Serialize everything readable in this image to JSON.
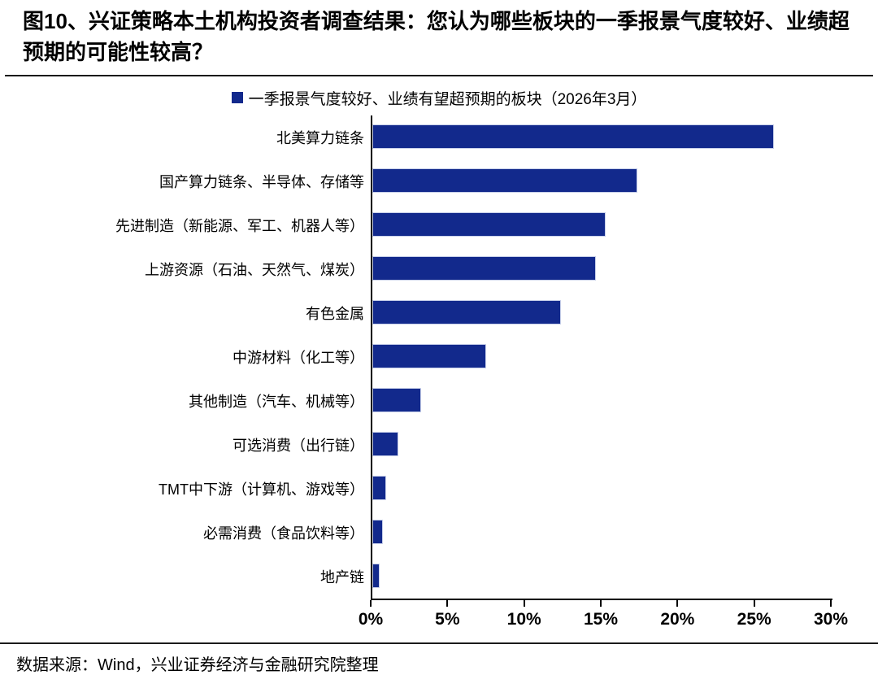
{
  "header": {
    "title": "图10、兴证策略本土机构投资者调查结果：您认为哪些板块的一季报景气度较好、业绩超预期的可能性较高？"
  },
  "legend": {
    "label": "一季报景气度较好、业绩有望超预期的板块（2026年3月）"
  },
  "footer": {
    "source": "数据来源：Wind，兴业证券经济与金融研究院整理"
  },
  "colors": {
    "bar": "#12298C",
    "bar_border": "#C7CFE9",
    "axis": "#000000",
    "rule": "#1A1A1A"
  },
  "chart_data": {
    "type": "bar",
    "orientation": "horizontal",
    "title": "一季报景气度较好、业绩有望超预期的板块（2026年3月）",
    "categories": [
      "北美算力链条",
      "国产算力链条、半导体、存储等",
      "先进制造（新能源、军工、机器人等）",
      "上游资源（石油、天然气、煤炭）",
      "有色金属",
      "中游材料（化工等）",
      "其他制造（汽车、机械等）",
      "可选消费（出行链）",
      "TMT中下游（计算机、游戏等）",
      "必需消费（食品饮料等）",
      "地产链"
    ],
    "values": [
      26.2,
      17.3,
      15.2,
      14.6,
      12.3,
      7.4,
      3.2,
      1.7,
      0.9,
      0.7,
      0.5
    ],
    "unit": "%",
    "x_ticks": [
      "0%",
      "5%",
      "10%",
      "15%",
      "20%",
      "25%",
      "30%"
    ],
    "xlim": [
      0,
      30
    ],
    "grid": false,
    "legend_position": "top-center"
  }
}
